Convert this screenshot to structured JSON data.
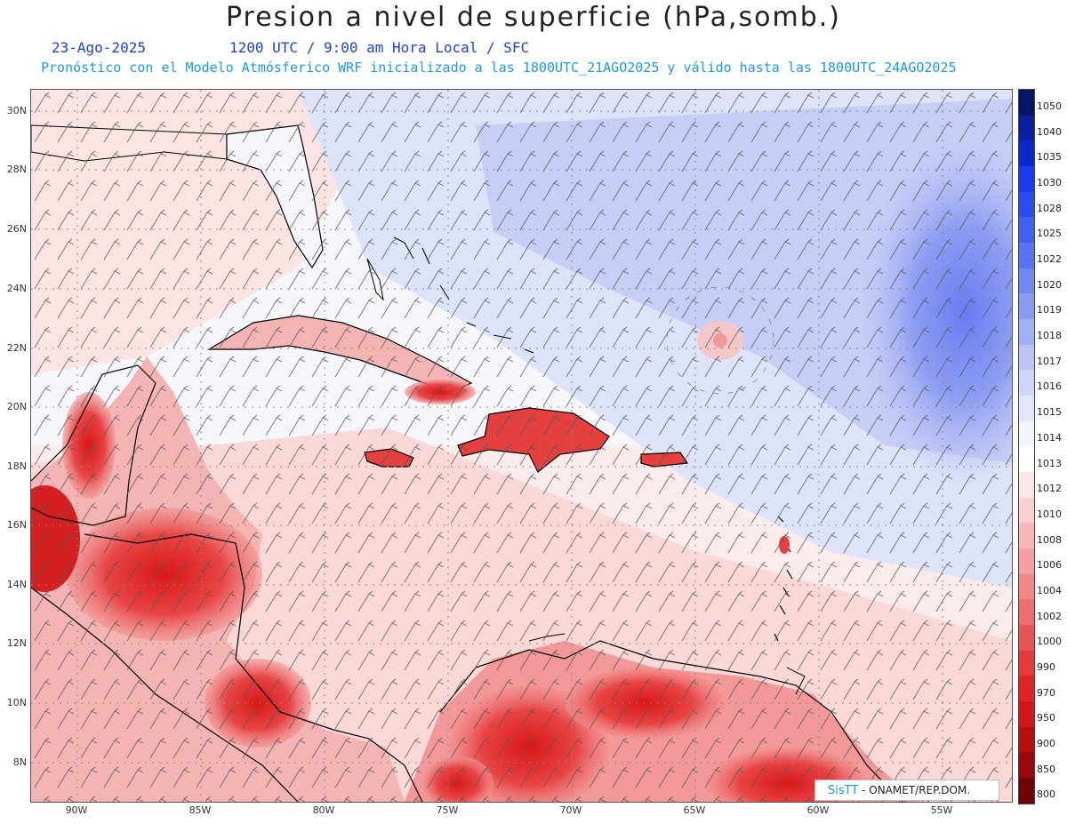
{
  "title": "Presion a nivel de superficie (hPa,somb.)",
  "date": "23-Ago-2025",
  "time_line": "1200 UTC / 9:00 am Hora Local / SFC",
  "forecast_line": "Pronóstico con el Modelo Atmósferico WRF inicializado a las 1800UTC_21AGO2025 y válido hasta las  1800UTC_24AGO2025",
  "lat_labels": [
    "30N",
    "28N",
    "26N",
    "24N",
    "22N",
    "20N",
    "18N",
    "16N",
    "14N",
    "12N",
    "10N",
    "8N"
  ],
  "lon_labels": [
    "90W",
    "85W",
    "80W",
    "75W",
    "70W",
    "65W",
    "60W",
    "55W"
  ],
  "colorbar": {
    "levels": [
      "1050",
      "1040",
      "1035",
      "1030",
      "1028",
      "1025",
      "1022",
      "1020",
      "1019",
      "1018",
      "1017",
      "1016",
      "1015",
      "1014",
      "1013",
      "1012",
      "1010",
      "1008",
      "1006",
      "1004",
      "1002",
      "1000",
      "990",
      "970",
      "950",
      "900",
      "850",
      "800"
    ],
    "colors": [
      "#0a1466",
      "#0c1ea0",
      "#0a28cc",
      "#1a3cee",
      "#2c4cf2",
      "#4060f4",
      "#5874f2",
      "#7088f2",
      "#8a9cf2",
      "#a4b0f4",
      "#bcc4f6",
      "#d0d6f8",
      "#e2e6fa",
      "#f2f4fc",
      "#ffffff",
      "#fde6e6",
      "#fbd0d0",
      "#f8b8b8",
      "#f4a0a0",
      "#f08888",
      "#ec6e6e",
      "#e85454",
      "#e43a3a",
      "#e02424",
      "#d01616",
      "#b80e0e",
      "#980808",
      "#700404"
    ]
  },
  "credit": {
    "logo": "SisTT",
    "text": " - ONAMET/REP.DOM."
  }
}
